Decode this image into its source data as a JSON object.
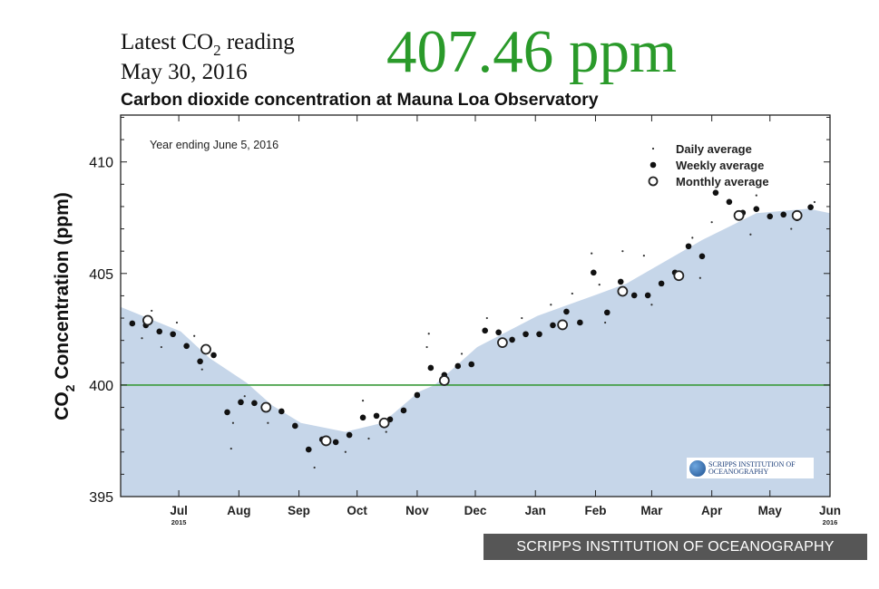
{
  "header": {
    "latest_label_pre": "Latest CO",
    "latest_label_sub": "2",
    "latest_label_post": " reading",
    "date": "May 30, 2016",
    "reading": "407.46 ppm",
    "reading_color": "#2a9a2a"
  },
  "caption": "SCRIPPS INSTITUTION OF OCEANOGRAPHY",
  "logo_text": [
    "SCRIPPS INSTITUTION OF",
    "OCEANOGRAPHY"
  ],
  "chart_data": {
    "type": "scatter",
    "title": "Carbon dioxide concentration at Mauna Loa Observatory",
    "annotation": "Year ending June 5, 2016",
    "ylabel_pre": "CO",
    "ylabel_sub": "2",
    "ylabel_post": " Concentration (ppm)",
    "ylim": [
      395,
      412.1
    ],
    "yticks": [
      395,
      400,
      405,
      410
    ],
    "xlim": [
      "2015-06-01",
      "2016-06-01"
    ],
    "xticks": [
      {
        "date": "2015-07-01",
        "label": "Jul",
        "year": "2015"
      },
      {
        "date": "2015-08-01",
        "label": "Aug"
      },
      {
        "date": "2015-09-01",
        "label": "Sep"
      },
      {
        "date": "2015-10-01",
        "label": "Oct"
      },
      {
        "date": "2015-11-01",
        "label": "Nov"
      },
      {
        "date": "2015-12-01",
        "label": "Dec"
      },
      {
        "date": "2016-01-01",
        "label": "Jan"
      },
      {
        "date": "2016-02-01",
        "label": "Feb"
      },
      {
        "date": "2016-03-01",
        "label": "Mar"
      },
      {
        "date": "2016-04-01",
        "label": "Apr"
      },
      {
        "date": "2016-05-01",
        "label": "May"
      },
      {
        "date": "2016-06-01",
        "label": "Jun",
        "year": "2016"
      }
    ],
    "reference_line": {
      "y": 400,
      "color": "#3a9a3a"
    },
    "fill_color": "#c6d6e9",
    "legend": {
      "position": "top-right",
      "entries": [
        "Daily average",
        "Weekly average",
        "Monthly average"
      ]
    },
    "seasonal_fit": [
      [
        "2015-06-01",
        403.5
      ],
      [
        "2015-07-02",
        402.4
      ],
      [
        "2015-07-17",
        401.2
      ],
      [
        "2015-08-05",
        400.1
      ],
      [
        "2015-08-18",
        399.1
      ],
      [
        "2015-09-02",
        398.3
      ],
      [
        "2015-09-25",
        397.9
      ],
      [
        "2015-10-14",
        398.3
      ],
      [
        "2015-11-02",
        399.7
      ],
      [
        "2015-11-10",
        400.0
      ],
      [
        "2015-12-02",
        401.7
      ],
      [
        "2016-01-02",
        403.1
      ],
      [
        "2016-02-02",
        404.07
      ],
      [
        "2016-02-17",
        404.55
      ],
      [
        "2016-03-27",
        406.5
      ],
      [
        "2016-04-24",
        407.7
      ],
      [
        "2016-05-21",
        407.9
      ],
      [
        "2016-06-01",
        407.7
      ]
    ],
    "series": [
      {
        "name": "Daily average",
        "points": [
          [
            "2015-06-12",
            402.1
          ],
          [
            "2015-06-17",
            403.33
          ],
          [
            "2015-06-22",
            401.7
          ],
          [
            "2015-06-30",
            402.8
          ],
          [
            "2015-07-09",
            402.2
          ],
          [
            "2015-07-13",
            400.7
          ],
          [
            "2015-07-28",
            397.15
          ],
          [
            "2015-07-29",
            398.3
          ],
          [
            "2015-08-04",
            399.5
          ],
          [
            "2015-08-16",
            398.3
          ],
          [
            "2015-09-09",
            396.3
          ],
          [
            "2015-09-25",
            397.0
          ],
          [
            "2015-10-04",
            399.3
          ],
          [
            "2015-10-07",
            397.6
          ],
          [
            "2015-10-16",
            397.9
          ],
          [
            "2015-11-06",
            401.7
          ],
          [
            "2015-11-07",
            402.3
          ],
          [
            "2015-11-24",
            401.4
          ],
          [
            "2015-12-07",
            403.0
          ],
          [
            "2015-12-25",
            403.0
          ],
          [
            "2016-01-09",
            403.6
          ],
          [
            "2016-01-20",
            404.1
          ],
          [
            "2016-01-30",
            405.9
          ],
          [
            "2016-02-03",
            404.5
          ],
          [
            "2016-02-06",
            402.8
          ],
          [
            "2016-02-15",
            406.0
          ],
          [
            "2016-02-26",
            405.8
          ],
          [
            "2016-03-01",
            403.6
          ],
          [
            "2016-03-22",
            406.6
          ],
          [
            "2016-03-26",
            404.8
          ],
          [
            "2016-04-01",
            407.3
          ],
          [
            "2016-04-21",
            406.75
          ],
          [
            "2016-04-24",
            408.5
          ],
          [
            "2016-05-12",
            407.0
          ],
          [
            "2016-05-24",
            408.2
          ]
        ]
      },
      {
        "name": "Weekly average",
        "points": [
          [
            "2015-06-07",
            402.76
          ],
          [
            "2015-06-14",
            402.68
          ],
          [
            "2015-06-21",
            402.4
          ],
          [
            "2015-06-28",
            402.28
          ],
          [
            "2015-07-05",
            401.75
          ],
          [
            "2015-07-12",
            401.06
          ],
          [
            "2015-07-19",
            401.34
          ],
          [
            "2015-07-26",
            398.78
          ],
          [
            "2015-08-02",
            399.23
          ],
          [
            "2015-08-09",
            399.19
          ],
          [
            "2015-08-16",
            399.07
          ],
          [
            "2015-08-23",
            398.82
          ],
          [
            "2015-08-30",
            398.17
          ],
          [
            "2015-09-06",
            397.11
          ],
          [
            "2015-09-13",
            397.56
          ],
          [
            "2015-09-20",
            397.44
          ],
          [
            "2015-09-27",
            397.76
          ],
          [
            "2015-10-04",
            398.54
          ],
          [
            "2015-10-11",
            398.62
          ],
          [
            "2015-10-18",
            398.46
          ],
          [
            "2015-10-25",
            398.86
          ],
          [
            "2015-11-01",
            399.55
          ],
          [
            "2015-11-08",
            400.77
          ],
          [
            "2015-11-15",
            400.45
          ],
          [
            "2015-11-22",
            400.85
          ],
          [
            "2015-11-29",
            400.93
          ],
          [
            "2015-12-06",
            402.44
          ],
          [
            "2015-12-13",
            402.36
          ],
          [
            "2015-12-20",
            402.03
          ],
          [
            "2015-12-27",
            402.28
          ],
          [
            "2016-01-03",
            402.28
          ],
          [
            "2016-01-10",
            402.68
          ],
          [
            "2016-01-17",
            403.29
          ],
          [
            "2016-01-24",
            402.8
          ],
          [
            "2016-01-31",
            405.04
          ],
          [
            "2016-02-07",
            403.25
          ],
          [
            "2016-02-14",
            404.63
          ],
          [
            "2016-02-21",
            404.02
          ],
          [
            "2016-02-28",
            404.02
          ],
          [
            "2016-03-06",
            404.55
          ],
          [
            "2016-03-13",
            405.04
          ],
          [
            "2016-03-20",
            406.22
          ],
          [
            "2016-03-27",
            405.77
          ],
          [
            "2016-04-03",
            408.62
          ],
          [
            "2016-04-10",
            408.21
          ],
          [
            "2016-04-17",
            407.72
          ],
          [
            "2016-04-24",
            407.89
          ],
          [
            "2016-05-01",
            407.56
          ],
          [
            "2016-05-08",
            407.64
          ],
          [
            "2016-05-15",
            407.48
          ],
          [
            "2016-05-22",
            407.97
          ]
        ]
      },
      {
        "name": "Monthly average",
        "points": [
          [
            "2015-06-15",
            402.9
          ],
          [
            "2015-07-15",
            401.6
          ],
          [
            "2015-08-15",
            399.0
          ],
          [
            "2015-09-15",
            397.5
          ],
          [
            "2015-10-15",
            398.3
          ],
          [
            "2015-11-15",
            400.2
          ],
          [
            "2015-12-15",
            401.9
          ],
          [
            "2016-01-15",
            402.7
          ],
          [
            "2016-02-15",
            404.2
          ],
          [
            "2016-03-15",
            404.9
          ],
          [
            "2016-04-15",
            407.6
          ],
          [
            "2016-05-15",
            407.6
          ]
        ]
      }
    ]
  }
}
